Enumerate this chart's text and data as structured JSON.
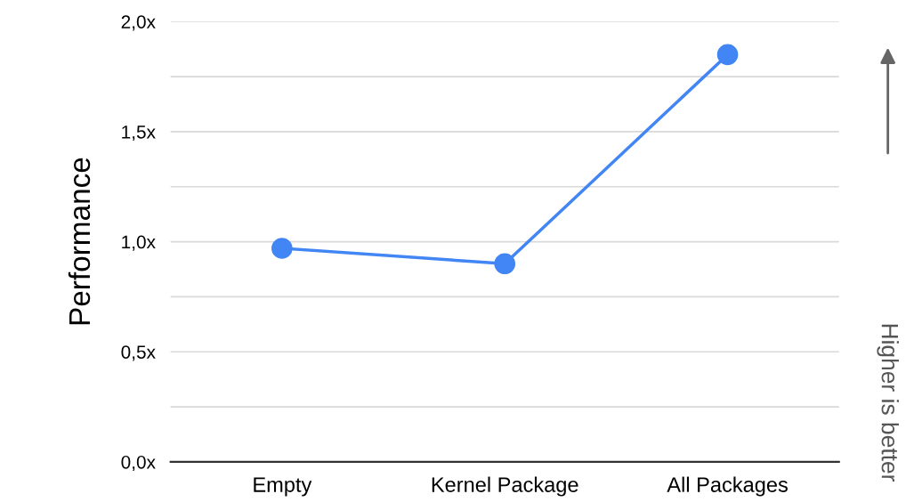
{
  "chart_data": {
    "type": "line",
    "ylabel": "Performance",
    "categories": [
      "Empty",
      "Kernel Package",
      "All Packages"
    ],
    "series": [
      {
        "color": "#4285f4",
        "values": [
          0.97,
          0.9,
          1.85
        ]
      }
    ],
    "marker": "circle",
    "ylim": [
      0,
      2
    ],
    "yticks": [
      {
        "value": 0,
        "label": "0,0x"
      },
      {
        "value": 0.25,
        "label": null
      },
      {
        "value": 0.5,
        "label": "0,5x"
      },
      {
        "value": 0.75,
        "label": null
      },
      {
        "value": 1,
        "label": "1,0x"
      },
      {
        "value": 1.25,
        "label": null
      },
      {
        "value": 1.5,
        "label": "1,5x"
      },
      {
        "value": 1.75,
        "label": null
      },
      {
        "value": 2,
        "label": "2,0x"
      }
    ],
    "grid": "y",
    "annotations": [
      "Higher is better"
    ]
  }
}
